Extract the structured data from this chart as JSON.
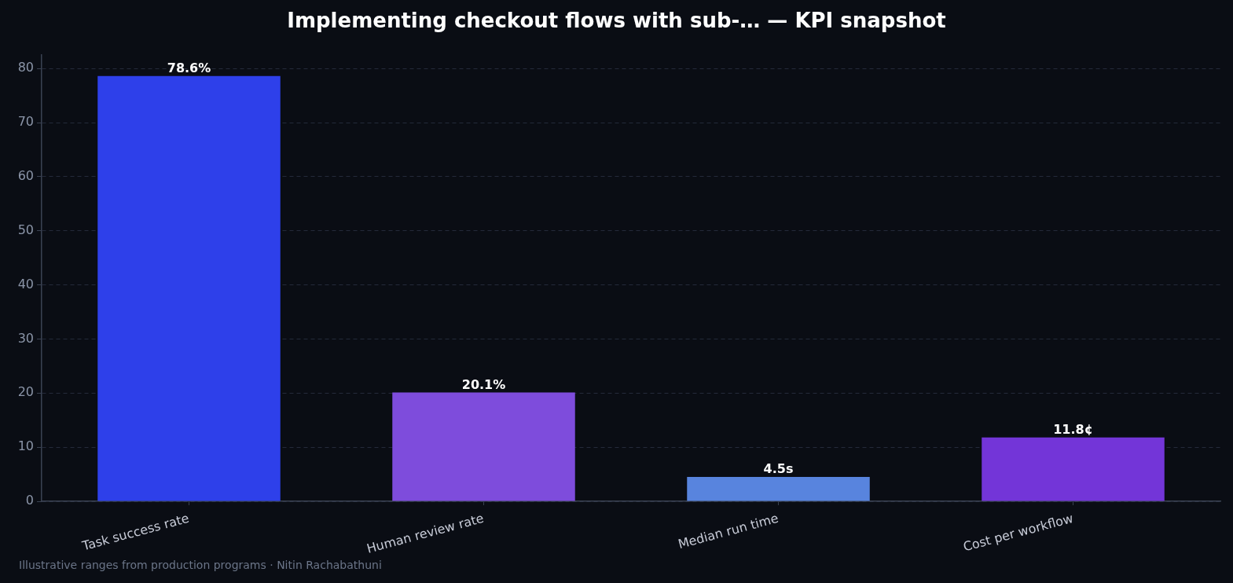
{
  "chart_data": {
    "type": "bar",
    "title": "Implementing checkout flows with sub-… — KPI snapshot",
    "categories": [
      "Task success rate",
      "Human review rate",
      "Median run time",
      "Cost per workflow"
    ],
    "values": [
      78.6,
      20.1,
      4.5,
      11.8
    ],
    "colors": [
      "#2e40ea",
      "#7e4cdc",
      "#5884de",
      "#7335d8"
    ],
    "value_labels": [
      "78.6%",
      "20.1%",
      "4.5s",
      "11.8¢"
    ],
    "ylim": [
      0,
      82.5
    ],
    "yticks": [
      0,
      10,
      20,
      30,
      40,
      50,
      60,
      70,
      80
    ],
    "grid": "y",
    "annotations": [
      "Illustrative ranges from production programs · Nitin Rachabathuni"
    ]
  }
}
